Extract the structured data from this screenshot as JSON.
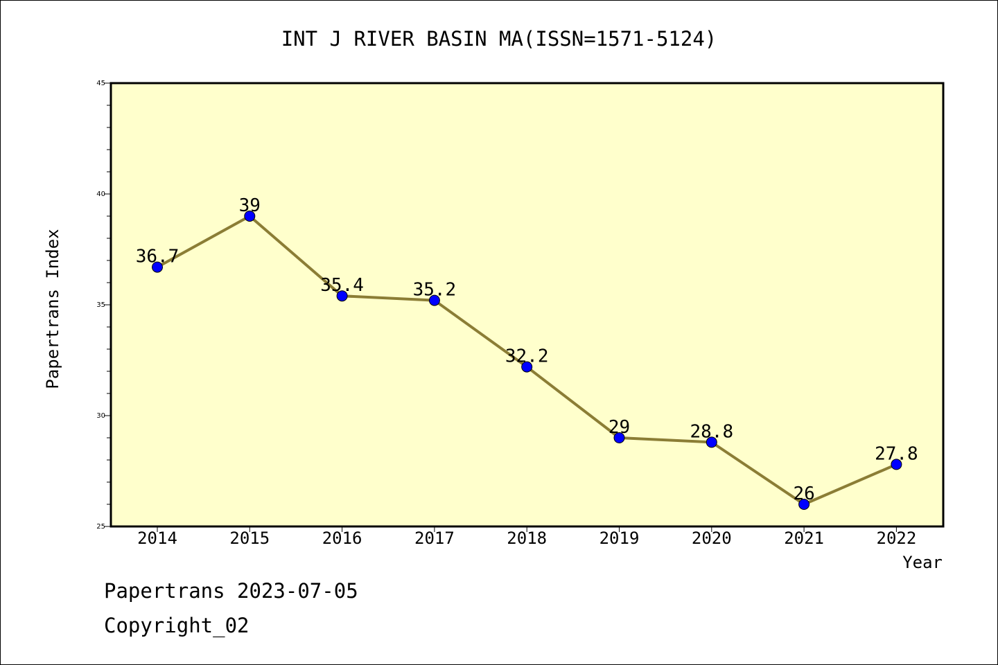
{
  "chart_data": {
    "type": "line",
    "title": "INT J RIVER BASIN MA(ISSN=1571-5124)",
    "xlabel": "Year",
    "ylabel": "Papertrans Index",
    "categories": [
      "2014",
      "2015",
      "2016",
      "2017",
      "2018",
      "2019",
      "2020",
      "2021",
      "2022"
    ],
    "series": [
      {
        "values": [
          36.7,
          39,
          35.4,
          35.2,
          32.2,
          29,
          28.8,
          26,
          27.8
        ]
      }
    ],
    "data_labels": [
      "36.7",
      "39",
      "35.4",
      "35.2",
      "32.2",
      "29",
      "28.8",
      "26",
      "27.8"
    ],
    "ylim": [
      25,
      45
    ],
    "yticks": [
      25,
      30,
      35,
      40,
      45
    ],
    "ytick_labels": [
      "25",
      "30",
      "35",
      "40",
      "45"
    ],
    "grid": false,
    "legend": "none",
    "colors": {
      "plot_background": "#ffffcc",
      "line": "#8b7d35",
      "marker": "#0000ff",
      "axis": "#000000"
    }
  },
  "footer": {
    "line1": "Papertrans 2023-07-05",
    "line2": "Copyright_02"
  }
}
